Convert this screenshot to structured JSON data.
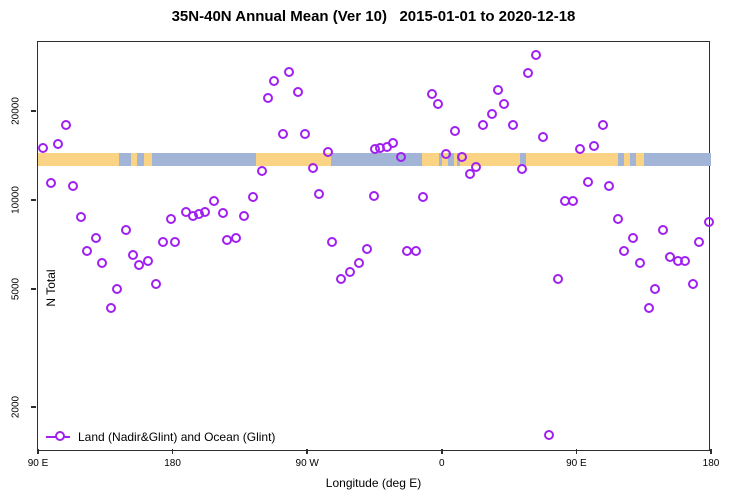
{
  "title": "35N-40N Annual Mean (Ver 10)   2015-01-01 to 2020-12-18",
  "axes": {
    "x_label": "Longitude (deg E)",
    "y_label": "N Total"
  },
  "legend": {
    "label": "Land (Nadir&Glint) and Ocean (Glint)",
    "marker": "open-circle-on-line"
  },
  "colors": {
    "marker": "#A020F0",
    "land": "#FAD384",
    "ocean": "#A2B5D7",
    "axis": "#2e2e2e"
  },
  "chart_data": {
    "type": "scatter",
    "title": "35N-40N Annual Mean (Ver 10)   2015-01-01 to 2020-12-18",
    "xlabel": "Longitude (deg E)",
    "ylabel": "N Total",
    "x_axis": {
      "units": "degrees east, increasing continuously from 90E around the globe to 180 (wrapped)",
      "range_deg": [
        90,
        540
      ],
      "ticks": [
        {
          "deg": 90,
          "label": "90 E"
        },
        {
          "deg": 180,
          "label": "180"
        },
        {
          "deg": 270,
          "label": "90 W"
        },
        {
          "deg": 360,
          "label": "0"
        },
        {
          "deg": 450,
          "label": "90 E"
        },
        {
          "deg": 540,
          "label": "180"
        }
      ]
    },
    "y_axis": {
      "scale": "log10",
      "range": [
        1400,
        34200
      ],
      "ticks": [
        {
          "value": 2000,
          "label": "2000"
        },
        {
          "value": 5000,
          "label": "5000"
        },
        {
          "value": 10000,
          "label": "10000"
        },
        {
          "value": 20000,
          "label": "20000"
        }
      ]
    },
    "grid": false,
    "legend_position": "bottom-left-inside",
    "series": [
      {
        "name": "Land (Nadir&Glint) and Ocean (Glint)",
        "marker": "open-circle",
        "color": "#A020F0",
        "points_deg_n": [
          [
            109,
            17800
          ],
          [
            94,
            14900
          ],
          [
            104,
            15400
          ],
          [
            99,
            11400
          ],
          [
            114,
            11100
          ],
          [
            119,
            8700
          ],
          [
            129,
            7400
          ],
          [
            149,
            7900
          ],
          [
            179,
            8600
          ],
          [
            189,
            9100
          ],
          [
            194,
            8800
          ],
          [
            198,
            8900
          ],
          [
            202,
            9100
          ],
          [
            174,
            7200
          ],
          [
            182,
            7200
          ],
          [
            123,
            6700
          ],
          [
            154,
            6500
          ],
          [
            133,
            6100
          ],
          [
            158,
            6000
          ],
          [
            164,
            6200
          ],
          [
            143,
            5000
          ],
          [
            169,
            5200
          ],
          [
            139,
            4300
          ],
          [
            258,
            26900
          ],
          [
            248,
            25100
          ],
          [
            264,
            23000
          ],
          [
            244,
            22100
          ],
          [
            254,
            16700
          ],
          [
            269,
            16700
          ],
          [
            284,
            14500
          ],
          [
            240,
            12500
          ],
          [
            274,
            12800
          ],
          [
            278,
            10400
          ],
          [
            208,
            9900
          ],
          [
            234,
            10200
          ],
          [
            214,
            9000
          ],
          [
            228,
            8800
          ],
          [
            217,
            7300
          ],
          [
            223,
            7400
          ],
          [
            287,
            7200
          ],
          [
            310,
            6800
          ],
          [
            293,
            5400
          ],
          [
            299,
            5700
          ],
          [
            305,
            6100
          ],
          [
            316,
            14800
          ],
          [
            315,
            10300
          ],
          [
            319,
            14900
          ],
          [
            324,
            15000
          ],
          [
            328,
            15500
          ],
          [
            333,
            13900
          ],
          [
            337,
            6700
          ],
          [
            343,
            6700
          ],
          [
            348,
            10200
          ],
          [
            354,
            22700
          ],
          [
            358,
            21100
          ],
          [
            369,
            17000
          ],
          [
            363,
            14300
          ],
          [
            374,
            13900
          ],
          [
            383,
            12900
          ],
          [
            379,
            12200
          ],
          [
            388,
            17800
          ],
          [
            394,
            19500
          ],
          [
            398,
            23500
          ],
          [
            402,
            21100
          ],
          [
            408,
            17900
          ],
          [
            414,
            12700
          ],
          [
            418,
            26700
          ],
          [
            423,
            30700
          ],
          [
            428,
            16300
          ],
          [
            432,
            1600
          ],
          [
            438,
            5400
          ],
          [
            443,
            9900
          ],
          [
            448,
            9900
          ],
          [
            453,
            14800
          ],
          [
            458,
            11500
          ],
          [
            462,
            15200
          ],
          [
            468,
            17800
          ],
          [
            472,
            11100
          ],
          [
            478,
            8600
          ],
          [
            482,
            6700
          ],
          [
            488,
            7400
          ],
          [
            493,
            6100
          ],
          [
            499,
            4300
          ],
          [
            503,
            5000
          ],
          [
            508,
            7900
          ],
          [
            513,
            6400
          ],
          [
            518,
            6200
          ],
          [
            523,
            6200
          ],
          [
            528,
            5200
          ],
          [
            532,
            7200
          ],
          [
            539,
            8400
          ]
        ]
      }
    ],
    "land_ocean_band": {
      "description": "horizontal map strip showing land vs ocean along the 35N-40N latitude belt",
      "n_value_range": [
        13100,
        14600
      ],
      "segments_deg": [
        [
          90,
          144,
          "land"
        ],
        [
          144,
          152,
          "ocean"
        ],
        [
          152,
          156,
          "land"
        ],
        [
          156,
          161,
          "ocean"
        ],
        [
          161,
          166,
          "land"
        ],
        [
          166,
          236,
          "ocean"
        ],
        [
          236,
          286,
          "land"
        ],
        [
          286,
          347,
          "ocean"
        ],
        [
          347,
          358,
          "land"
        ],
        [
          358,
          360,
          "ocean"
        ],
        [
          360,
          364,
          "land"
        ],
        [
          364,
          368,
          "ocean"
        ],
        [
          368,
          370,
          "land"
        ],
        [
          370,
          372,
          "ocean"
        ],
        [
          372,
          412,
          "land"
        ],
        [
          412,
          416,
          "ocean"
        ],
        [
          416,
          478,
          "land"
        ],
        [
          478,
          482,
          "ocean"
        ],
        [
          482,
          486,
          "land"
        ],
        [
          486,
          490,
          "ocean"
        ],
        [
          490,
          495,
          "land"
        ],
        [
          495,
          540,
          "ocean"
        ]
      ]
    }
  }
}
